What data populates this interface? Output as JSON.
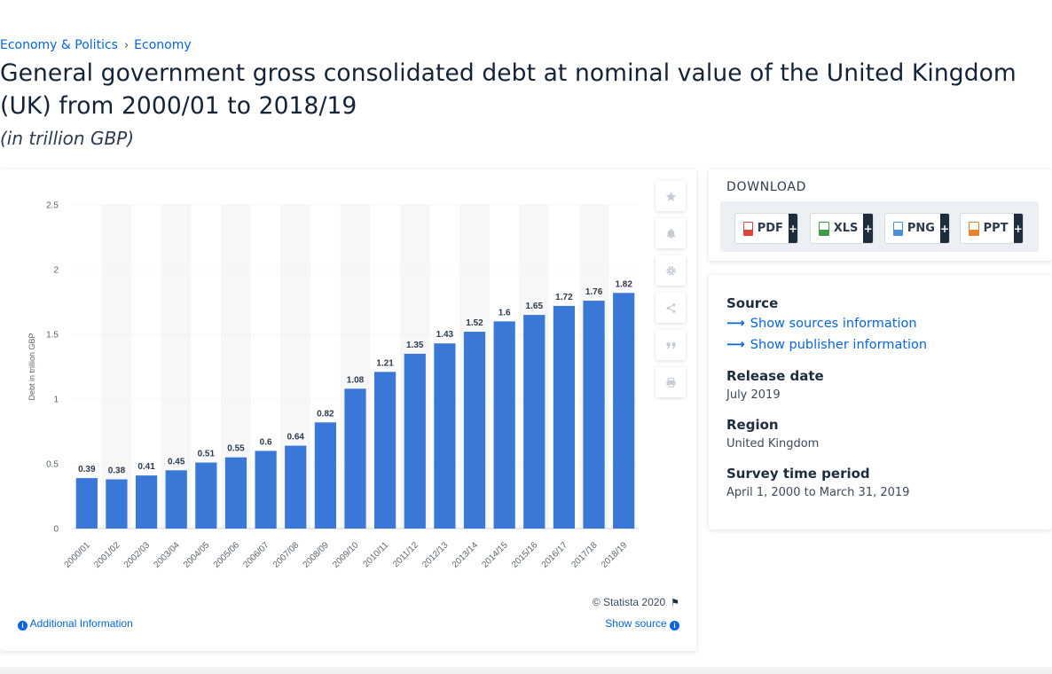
{
  "breadcrumb": {
    "items": [
      "Economy & Politics",
      "Economy"
    ],
    "separator": "›"
  },
  "title": "General government gross consolidated debt at nominal value of the United Kingdom (UK) from 2000/01 to 2018/19",
  "subtitle": "(in trillion GBP)",
  "toolbar": {
    "icons": [
      "star-icon",
      "bell-icon",
      "gear-icon",
      "share-icon",
      "quote-icon",
      "print-icon"
    ]
  },
  "footer": {
    "copyright": "© Statista 2020",
    "additional_info": "Additional Information",
    "show_source": "Show source"
  },
  "download": {
    "title": "DOWNLOAD",
    "buttons": [
      {
        "label": "PDF",
        "plus": "+",
        "color": "#e0443a"
      },
      {
        "label": "XLS",
        "plus": "+",
        "color": "#3e9b46"
      },
      {
        "label": "PNG",
        "plus": "+",
        "color": "#4a90d9"
      },
      {
        "label": "PPT",
        "plus": "+",
        "color": "#e8822f"
      }
    ]
  },
  "info": {
    "source_label": "Source",
    "show_sources": "Show sources information",
    "show_publisher": "Show publisher information",
    "release_label": "Release date",
    "release_value": "July 2019",
    "region_label": "Region",
    "region_value": "United Kingdom",
    "survey_label": "Survey time period",
    "survey_value": "April 1, 2000 to March 31, 2019"
  },
  "colors": {
    "bar": "#3a78d8",
    "accent": "#0666e0"
  },
  "chart_data": {
    "type": "bar",
    "categories": [
      "2000/01",
      "2001/02",
      "2002/03",
      "2003/04",
      "2004/05",
      "2005/06",
      "2006/07",
      "2007/08",
      "2008/09",
      "2009/10",
      "2010/11",
      "2011/12",
      "2012/13",
      "2013/14",
      "2014/15",
      "2015/16",
      "2016/17",
      "2017/18",
      "2018/19"
    ],
    "values": [
      0.39,
      0.38,
      0.41,
      0.45,
      0.51,
      0.55,
      0.6,
      0.64,
      0.82,
      1.08,
      1.21,
      1.35,
      1.43,
      1.52,
      1.6,
      1.65,
      1.72,
      1.76,
      1.82
    ],
    "value_labels": [
      "0.39",
      "0.38",
      "0.41",
      "0.45",
      "0.51",
      "0.55",
      "0.6",
      "0.64",
      "0.82",
      "1.08",
      "1.21",
      "1.35",
      "1.43",
      "1.52",
      "1.6",
      "1.65",
      "1.72",
      "1.76",
      "1.82"
    ],
    "ylabel": "Debt in trillion GBP",
    "xlabel": "",
    "ylim": [
      0,
      2.5
    ],
    "yticks": [
      "0",
      "0.5",
      "1",
      "1.5",
      "2",
      "2.5"
    ],
    "grid": true,
    "color": "#3a78d8"
  }
}
